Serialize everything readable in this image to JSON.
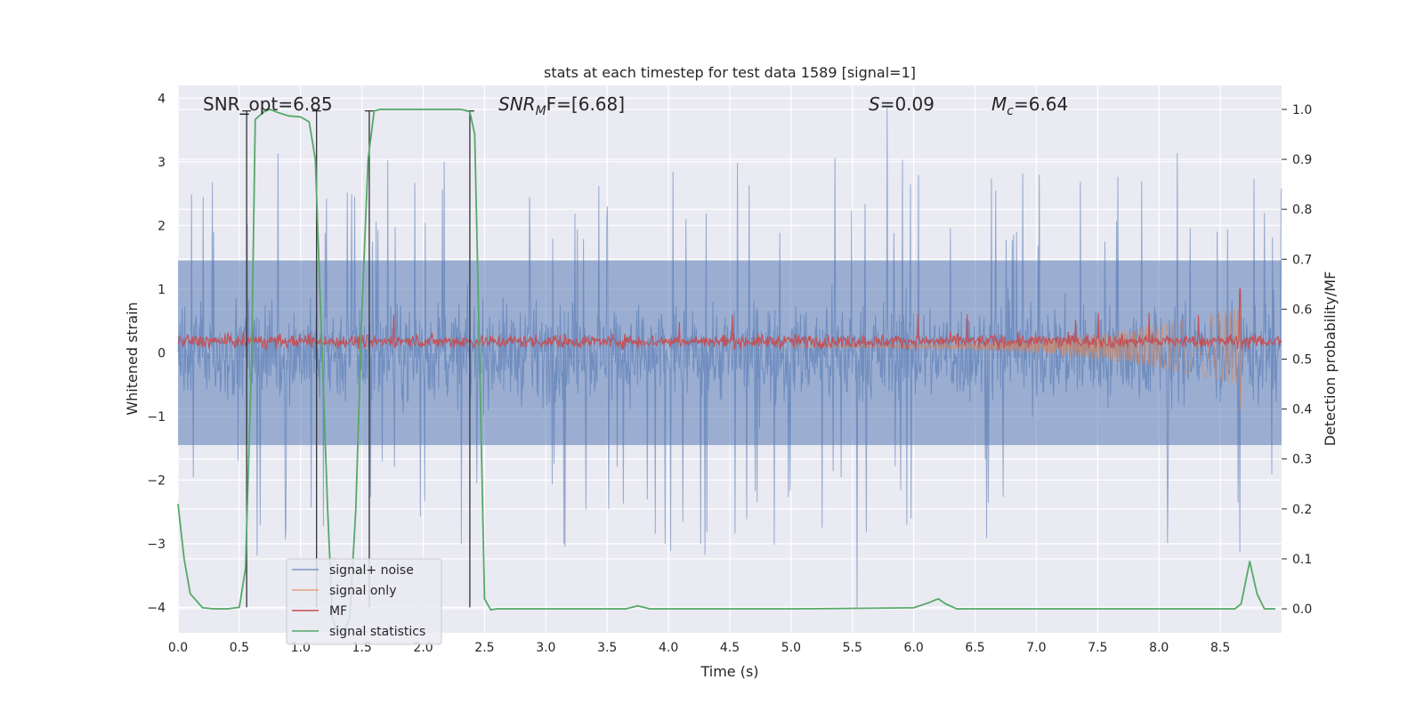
{
  "chart_data": {
    "type": "line",
    "title": "stats at each timestep for test data 1589 [signal=1]",
    "xlabel": "Time (s)",
    "ylabel_left": "Whitened strain",
    "ylabel_right": "Detection probability/MF",
    "xlim": [
      0,
      9.0
    ],
    "ylim_left": [
      -4.4,
      4.2
    ],
    "ylim_right": [
      -0.048,
      1.048
    ],
    "x_ticks": [
      "0.0",
      "0.5",
      "1.0",
      "1.5",
      "2.0",
      "2.5",
      "3.0",
      "3.5",
      "4.0",
      "4.5",
      "5.0",
      "5.5",
      "6.0",
      "6.5",
      "7.0",
      "7.5",
      "8.0",
      "8.5"
    ],
    "y_ticks_left": [
      "−4",
      "−3",
      "−2",
      "−1",
      "0",
      "1",
      "2",
      "3",
      "4"
    ],
    "y_ticks_right": [
      "0.0",
      "0.1",
      "0.2",
      "0.3",
      "0.4",
      "0.5",
      "0.6",
      "0.7",
      "0.8",
      "0.9",
      "1.0"
    ],
    "grid": true,
    "legend_position": "lower-left",
    "colors": {
      "background": "#EAEAF2",
      "grid": "#FFFFFF",
      "signal_noise": "#4C72B0",
      "signal_only": "#DD8452",
      "mf": "#C44E52",
      "stats": "#55A868",
      "vlines": "#333333"
    },
    "annotations": {
      "snr_opt": "SNR_opt=6.85",
      "snr_mf_name": "SNR",
      "snr_mf_sub": "M",
      "snr_mf_rest": "F=[6.68]",
      "s_name": "S",
      "s_rest": "=0.09",
      "mc_name": "M",
      "mc_sub": "c",
      "mc_rest": "=6.64"
    },
    "series": [
      {
        "name": "signal+ noise",
        "kind": "noise",
        "noise_band": [
          -1.45,
          1.45
        ],
        "peak_max": 3.85,
        "peak_min": -4.0,
        "point_count": 1800
      },
      {
        "name": "signal only",
        "kind": "chirp",
        "axis": "left",
        "onset_time": 5.0,
        "end_time": 8.65,
        "amplitude_start": 0.02,
        "amplitude_end": 0.62,
        "offset": 0.1,
        "spike": [
          8.66,
          1.0,
          -0.9
        ]
      },
      {
        "name": "MF",
        "kind": "noisy_baseline",
        "axis": "left",
        "baseline": 0.18,
        "spread": 0.15,
        "spike": [
          8.66,
          1.0
        ]
      },
      {
        "name": "signal statistics",
        "kind": "curve",
        "axis": "right",
        "x": [
          0.0,
          0.05,
          0.1,
          0.2,
          0.3,
          0.4,
          0.5,
          0.55,
          0.6,
          0.63,
          0.7,
          0.75,
          0.8,
          0.9,
          1.0,
          1.07,
          1.12,
          1.17,
          1.22,
          1.26,
          1.3,
          1.35,
          1.4,
          1.45,
          1.5,
          1.55,
          1.6,
          1.65,
          1.7,
          1.8,
          2.0,
          2.2,
          2.3,
          2.35,
          2.38,
          2.42,
          2.46,
          2.5,
          2.55,
          2.6,
          3.0,
          3.5,
          3.65,
          3.75,
          3.85,
          4.0,
          5.0,
          6.0,
          6.12,
          6.2,
          6.26,
          6.35,
          6.5,
          7.0,
          8.0,
          8.5,
          8.62,
          8.67,
          8.74,
          8.8,
          8.86,
          8.95
        ],
        "y": [
          0.21,
          0.1,
          0.03,
          0.002,
          0.0,
          0.0,
          0.003,
          0.08,
          0.5,
          0.98,
          0.995,
          1.0,
          0.995,
          0.987,
          0.985,
          0.975,
          0.9,
          0.55,
          0.2,
          -0.02,
          -0.045,
          -0.045,
          -0.02,
          0.2,
          0.6,
          0.9,
          0.997,
          1.0,
          1.0,
          1.0,
          1.0,
          1.0,
          1.0,
          0.998,
          0.995,
          0.95,
          0.5,
          0.02,
          -0.002,
          0.0,
          0.0,
          0.0,
          0.0,
          0.006,
          0.0,
          0.0,
          0.0,
          0.002,
          0.012,
          0.02,
          0.01,
          0.0,
          0.0,
          0.0,
          0.0,
          0.0,
          0.0,
          0.01,
          0.095,
          0.03,
          0.0,
          0.0
        ]
      }
    ],
    "vertical_lines": [
      {
        "x": 0.56,
        "y_top": 3.8,
        "y_bottom": -4.0
      },
      {
        "x": 1.13,
        "y_top": 3.8,
        "y_bottom": -4.0
      },
      {
        "x": 1.56,
        "y_top": 3.8,
        "y_bottom": -4.0
      },
      {
        "x": 2.38,
        "y_top": 3.8,
        "y_bottom": -4.0
      }
    ]
  }
}
